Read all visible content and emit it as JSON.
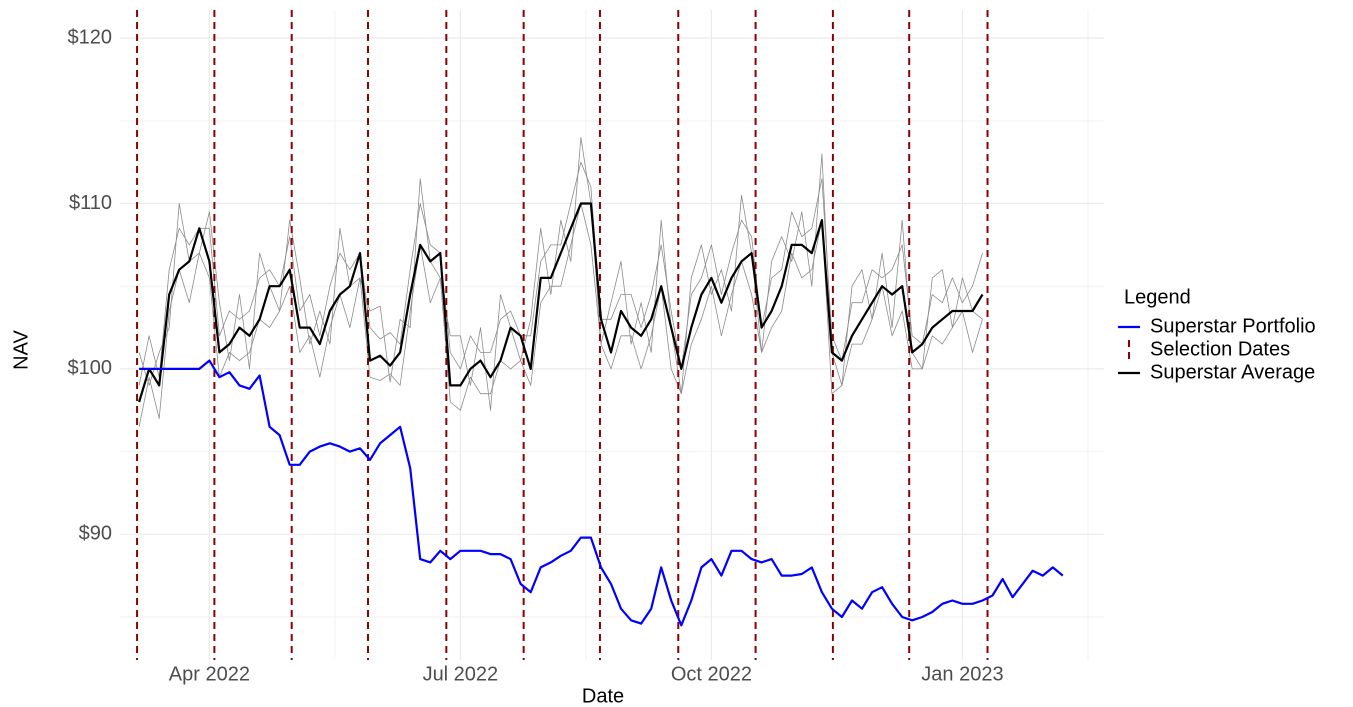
{
  "chart_data": {
    "type": "line",
    "xlabel": "Date",
    "ylabel": "NAV",
    "x": [
      2022.18,
      2022.19,
      2022.2,
      2022.21,
      2022.22,
      2022.23,
      2022.24,
      2022.25,
      2022.26,
      2022.27,
      2022.28,
      2022.29,
      2022.3,
      2022.31,
      2022.32,
      2022.33,
      2022.34,
      2022.35,
      2022.36,
      2022.37,
      2022.38,
      2022.39,
      2022.4,
      2022.41,
      2022.42,
      2022.43,
      2022.44,
      2022.45,
      2022.46,
      2022.47,
      2022.48,
      2022.49,
      2022.5,
      2022.51,
      2022.52,
      2022.53,
      2022.54,
      2022.55,
      2022.56,
      2022.57,
      2022.58,
      2022.59,
      2022.6,
      2022.61,
      2022.62,
      2022.63,
      2022.64,
      2022.65,
      2022.66,
      2022.67,
      2022.68,
      2022.69,
      2022.7,
      2022.71,
      2022.72,
      2022.73,
      2022.74,
      2022.75,
      2022.76,
      2022.77,
      2022.78,
      2022.79,
      2022.8,
      2022.81,
      2022.82,
      2022.83,
      2022.84,
      2022.85,
      2022.86,
      2022.87,
      2022.88,
      2022.89,
      2022.9,
      2022.91,
      2022.92,
      2022.93,
      2022.94,
      2022.95,
      2022.96,
      2022.97,
      2022.98,
      2022.99,
      2023.0,
      2023.01,
      2023.02,
      2023.03,
      2023.04,
      2023.05,
      2023.06,
      2023.07,
      2023.08,
      2023.09,
      2023.1
    ],
    "series": [
      {
        "name": "Superstar Portfolio",
        "color": "#0000ff",
        "width": 2.2,
        "legend": true,
        "values": [
          100,
          100,
          100,
          100,
          100,
          100,
          100,
          100.5,
          99.5,
          99.8,
          99,
          98.8,
          99.6,
          96.5,
          96,
          94.2,
          94.2,
          95,
          95.3,
          95.5,
          95.3,
          95,
          95.2,
          94.5,
          95.5,
          96,
          96.5,
          94,
          88.5,
          88.3,
          89,
          88.5,
          89,
          89,
          89,
          88.8,
          88.8,
          88.5,
          87,
          86.5,
          88,
          88.3,
          88.7,
          89,
          89.8,
          89.8,
          88,
          87,
          85.5,
          84.8,
          84.6,
          85.5,
          88,
          86,
          84.5,
          86,
          88,
          88.5,
          87.5,
          89,
          89,
          88.5,
          88.3,
          88.5,
          87.5,
          87.5,
          87.6,
          88,
          86.5,
          85.5,
          85,
          86,
          85.5,
          86.5,
          86.8,
          85.8,
          85,
          84.8,
          85,
          85.3,
          85.8,
          86,
          85.8,
          85.8,
          86,
          86.3,
          87.3,
          86.2,
          87,
          87.8,
          87.5,
          88,
          87.5
        ]
      },
      {
        "name": "Superstar Average",
        "color": "#000000",
        "width": 2.2,
        "legend": true,
        "values": [
          98,
          100,
          99,
          104.5,
          106,
          106.5,
          108.5,
          106.5,
          101,
          101.5,
          102.5,
          102,
          103,
          105,
          105,
          106,
          102.5,
          102.5,
          101.5,
          103.5,
          104.5,
          105,
          107,
          100.5,
          100.8,
          100.2,
          101,
          104.5,
          107.5,
          106.5,
          107,
          99,
          99,
          100,
          100.5,
          99.5,
          100.5,
          102.5,
          102,
          100,
          105.5,
          105.5,
          107,
          108.5,
          110,
          110,
          103,
          101,
          103.5,
          102.5,
          102,
          103,
          105,
          102.5,
          100,
          102.5,
          104.5,
          105.5,
          104,
          105.5,
          106.5,
          107,
          102.5,
          103.5,
          105,
          107.5,
          107.5,
          107,
          109,
          101,
          100.5,
          102,
          103,
          104,
          105,
          104.5,
          105,
          101,
          101.5,
          102.5,
          103,
          103.5,
          103.5,
          103.5,
          104.5,
          null,
          null,
          null,
          null,
          null,
          null,
          null,
          null
        ]
      },
      {
        "color": "#8c8c8c",
        "width": 0.8,
        "values": [
          99,
          102,
          99.5,
          106,
          108.5,
          107.5,
          108.5,
          108.5,
          102,
          103.5,
          103,
          103.5,
          105.5,
          106,
          105,
          108,
          103.5,
          104.5,
          102,
          105,
          107,
          106,
          107,
          102.5,
          101.8,
          102.2,
          101.5,
          106,
          110,
          107.5,
          107,
          101,
          100,
          102,
          101,
          101,
          103,
          103.5,
          102,
          102,
          106.5,
          107.5,
          107.5,
          110,
          112.5,
          111,
          103,
          103,
          104.5,
          104.5,
          102.5,
          104.5,
          107.5,
          103.5,
          100,
          104.5,
          105.5,
          107.5,
          104.5,
          107,
          109,
          108,
          102.5,
          105.5,
          106,
          109.5,
          108,
          108.5,
          111.5,
          102,
          100.5,
          104,
          104,
          106,
          105.5,
          106,
          107.5,
          102,
          101.5,
          104.5,
          104,
          105.5,
          104,
          105,
          107,
          null,
          null,
          null,
          null,
          null,
          null,
          null,
          null
        ]
      },
      {
        "color": "#8c8c8c",
        "width": 0.8,
        "values": [
          96.5,
          99.5,
          97,
          103.5,
          106,
          104,
          107,
          105.5,
          99.5,
          101,
          100.5,
          101,
          103,
          102.5,
          103.5,
          105,
          101,
          102,
          99.5,
          102.5,
          104.5,
          102.5,
          105.5,
          99.5,
          99.3,
          99.7,
          99,
          103.5,
          107.5,
          104,
          105.5,
          98,
          97.5,
          99.5,
          98.5,
          98.5,
          100.5,
          100,
          100.5,
          99,
          104,
          105,
          105,
          107.5,
          110,
          107.5,
          101.5,
          100,
          102,
          102,
          100,
          102,
          105,
          100,
          98.5,
          101.5,
          103,
          105,
          102,
          104.5,
          106.5,
          104.5,
          101,
          102.5,
          103.5,
          107,
          105.5,
          106,
          109,
          98.5,
          99,
          101.5,
          101.5,
          103,
          105,
          102,
          103.5,
          100,
          100,
          102,
          101.5,
          102.5,
          103.5,
          101,
          103,
          null,
          null,
          null,
          null,
          null,
          null,
          null,
          null
        ]
      },
      {
        "color": "#8c8c8c",
        "width": 0.8,
        "values": [
          101,
          99,
          101,
          102.5,
          110,
          106.5,
          107,
          109.5,
          104,
          100.5,
          104.5,
          100,
          107,
          105,
          103.5,
          109,
          105.5,
          101.5,
          103.5,
          101.5,
          108.5,
          105,
          105.5,
          103.5,
          103.8,
          99.2,
          103,
          102.5,
          111.5,
          106.5,
          105.5,
          102,
          102,
          99,
          102.5,
          97.5,
          104.5,
          102.5,
          100.5,
          103,
          108.5,
          104.5,
          109,
          106.5,
          114,
          110,
          101.5,
          104,
          106.5,
          101.5,
          104,
          101,
          109,
          102.5,
          98.5,
          105.5,
          107.5,
          104.5,
          106,
          103.5,
          110.5,
          107,
          101,
          106.5,
          108,
          106.5,
          109.5,
          105,
          113,
          101,
          99,
          105,
          106,
          103,
          107,
          102.5,
          109,
          101,
          100,
          105.5,
          106,
          102.5,
          105.5,
          103.5,
          103,
          null,
          null,
          null,
          null,
          null,
          null,
          null,
          null
        ]
      }
    ],
    "vlines": {
      "name": "Selection Dates",
      "color": "#8b0000",
      "x": [
        2022.178,
        2022.255,
        2022.332,
        2022.408,
        2022.486,
        2022.563,
        2022.639,
        2022.717,
        2022.794,
        2022.871,
        2022.947,
        2023.025
      ]
    },
    "legend": {
      "title": "Legend",
      "position": "right"
    },
    "xlim": [
      2022.161,
      2023.141
    ],
    "xticks": [
      {
        "value": 2022.25,
        "label": "Apr 2022"
      },
      {
        "value": 2022.5,
        "label": "Jul 2022"
      },
      {
        "value": 2022.75,
        "label": "Oct 2022"
      },
      {
        "value": 2023.0,
        "label": "Jan 2023"
      }
    ],
    "ylim": [
      82.4,
      121.7
    ],
    "yticks": [
      {
        "value": 90,
        "label": "$90"
      },
      {
        "value": 100,
        "label": "$100"
      },
      {
        "value": 110,
        "label": "$110"
      },
      {
        "value": 120,
        "label": "$120"
      }
    ],
    "grid": true
  }
}
